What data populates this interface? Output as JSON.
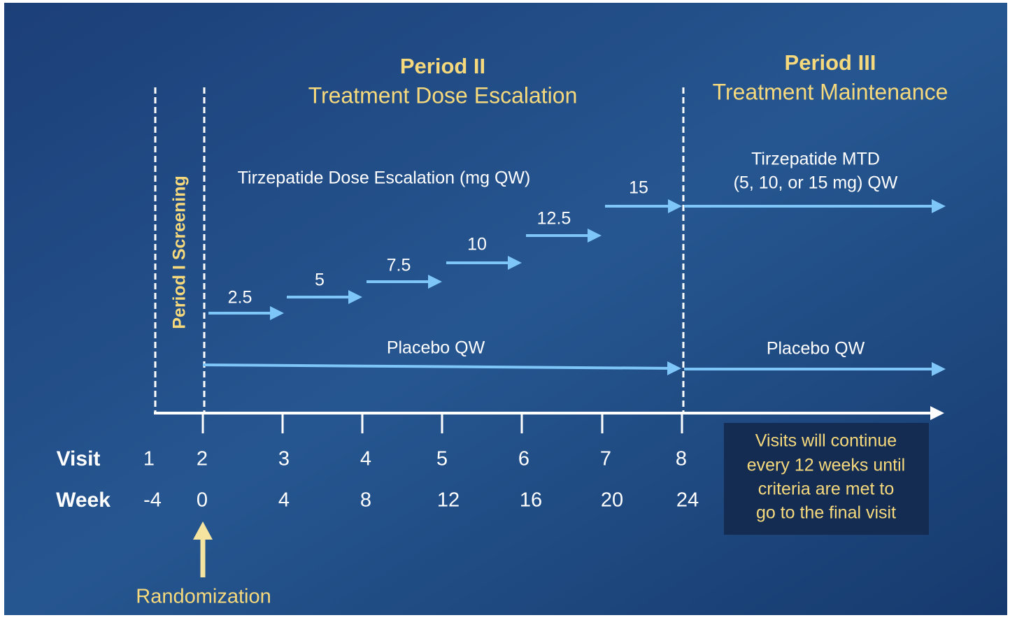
{
  "periods": [
    {
      "title": "Period II",
      "subtitle": "Treatment Dose Escalation"
    },
    {
      "title": "Period III",
      "subtitle": "Treatment Maintenance"
    }
  ],
  "screening_label": "Period I Screening",
  "escalation_label": "Tirzepatide Dose Escalation (mg QW)",
  "doses": [
    "2.5",
    "5",
    "7.5",
    "10",
    "12.5",
    "15"
  ],
  "maintenance_label": [
    "Tirzepatide MTD",
    "(5, 10, or 15 mg) QW"
  ],
  "placebo_labels": [
    "Placebo QW",
    "Placebo QW"
  ],
  "timeline": {
    "visit_label": "Visit",
    "week_label": "Week",
    "visits": [
      "1",
      "2",
      "3",
      "4",
      "5",
      "6",
      "7",
      "8"
    ],
    "weeks": [
      "-4",
      "0",
      "4",
      "8",
      "12",
      "16",
      "20",
      "24"
    ]
  },
  "randomization": "Randomization",
  "note": [
    "Visits will continue",
    "every 12 weeks until",
    "criteria are met to",
    "go to the final visit"
  ]
}
